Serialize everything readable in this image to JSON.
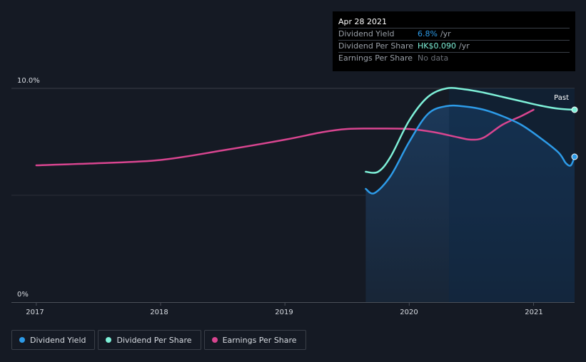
{
  "colors": {
    "dividend_yield": "#2d9be8",
    "dividend_per_share": "#7ef0d8",
    "earnings_per_share": "#d94590",
    "background": "#151a24"
  },
  "tooltip": {
    "date": "Apr 28 2021",
    "rows": [
      {
        "label": "Dividend Yield",
        "value": "6.8%",
        "unit": "/yr"
      },
      {
        "label": "Dividend Per Share",
        "value": "HK$0.090",
        "unit": "/yr"
      },
      {
        "label": "Earnings Per Share",
        "value": "No data",
        "unit": ""
      }
    ]
  },
  "legend": [
    {
      "label": "Dividend Yield",
      "icon": "dividend-yield-dot-icon"
    },
    {
      "label": "Dividend Per Share",
      "icon": "dividend-per-share-dot-icon"
    },
    {
      "label": "Earnings Per Share",
      "icon": "earnings-per-share-dot-icon"
    }
  ],
  "chart_data": {
    "type": "line",
    "y_tick_labels": [
      "10.0%",
      "0%"
    ],
    "ylim": [
      0,
      10
    ],
    "x_tick_labels": [
      "2017",
      "2018",
      "2019",
      "2020",
      "2021"
    ],
    "x_ticks": [
      2017,
      2018,
      2019,
      2020,
      2021
    ],
    "xlim": [
      2016.8,
      2021.33
    ],
    "past_label": "Past",
    "past_start_x": 2020.32,
    "series": [
      {
        "name": "Dividend Yield",
        "x": [
          2019.65,
          2019.72,
          2019.85,
          2020.0,
          2020.15,
          2020.3,
          2020.45,
          2020.6,
          2020.75,
          2020.9,
          2021.05,
          2021.2,
          2021.26,
          2021.3,
          2021.33
        ],
        "values": [
          5.3,
          5.1,
          5.9,
          7.5,
          8.8,
          9.17,
          9.15,
          9.0,
          8.7,
          8.3,
          7.7,
          7.0,
          6.5,
          6.4,
          6.8
        ]
      },
      {
        "name": "Dividend Per Share",
        "x": [
          2019.65,
          2019.75,
          2019.85,
          2020.0,
          2020.15,
          2020.3,
          2020.45,
          2020.6,
          2020.75,
          2020.9,
          2021.05,
          2021.2,
          2021.33
        ],
        "values": [
          6.1,
          6.1,
          6.8,
          8.5,
          9.6,
          10.0,
          9.95,
          9.8,
          9.6,
          9.4,
          9.2,
          9.05,
          9.0
        ]
      },
      {
        "name": "Earnings Per Share",
        "x": [
          2017.0,
          2017.5,
          2018.0,
          2018.5,
          2019.0,
          2019.3,
          2019.5,
          2019.75,
          2020.0,
          2020.2,
          2020.4,
          2020.5,
          2020.6,
          2020.75,
          2020.9,
          2021.0
        ],
        "values": [
          6.4,
          6.5,
          6.65,
          7.1,
          7.6,
          7.95,
          8.1,
          8.12,
          8.1,
          7.95,
          7.7,
          7.6,
          7.7,
          8.3,
          8.7,
          9.0
        ]
      }
    ]
  }
}
